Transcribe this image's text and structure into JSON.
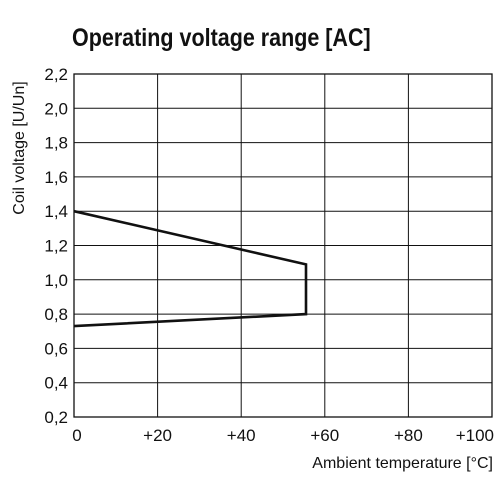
{
  "chart_data": {
    "type": "line",
    "title": "Operating voltage range [AC]",
    "xlabel": "Ambient temperature [°C]",
    "ylabel": "Coil voltage [U/Un]",
    "xlim": [
      0,
      100
    ],
    "ylim": [
      0.2,
      2.2
    ],
    "xticks": [
      0,
      20,
      40,
      60,
      80,
      100
    ],
    "xtick_labels": [
      "0",
      "+20",
      "+40",
      "+60",
      "+80",
      "+100"
    ],
    "yticks": [
      0.2,
      0.4,
      0.6,
      0.8,
      1.0,
      1.2,
      1.4,
      1.6,
      1.8,
      2.0,
      2.2
    ],
    "ytick_labels": [
      "0,2",
      "0,4",
      "0,6",
      "0,8",
      "1,0",
      "1,2",
      "1,4",
      "1,6",
      "1,8",
      "2,0",
      "2,2"
    ],
    "grid": true,
    "series": [
      {
        "x": [
          0,
          55.5,
          55.5,
          0
        ],
        "y": [
          1.4,
          1.09,
          0.8,
          0.73
        ]
      }
    ],
    "line_color": "#111111",
    "grid_color": "#111111"
  }
}
